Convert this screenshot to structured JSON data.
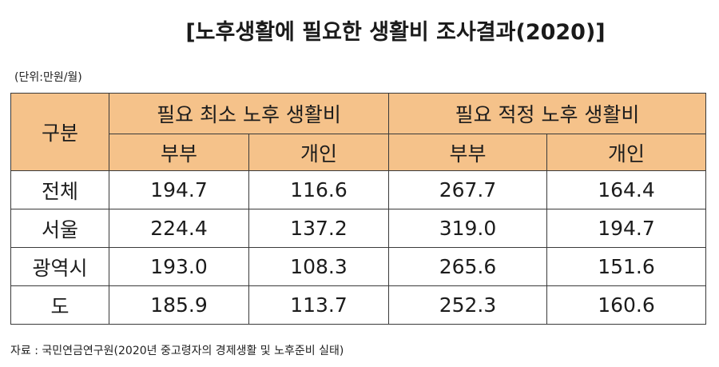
{
  "title": "[노후생활에 필요한 생활비 조사결과(2020)]",
  "unit": "(단위:만원/월)",
  "table": {
    "corner": "구분",
    "groups": [
      "필요 최소 노후 생활비",
      "필요 적정 노후 생활비"
    ],
    "subheaders": [
      "부부",
      "개인",
      "부부",
      "개인"
    ],
    "rows": [
      {
        "label": "전체",
        "values": [
          "194.7",
          "116.6",
          "267.7",
          "164.4"
        ]
      },
      {
        "label": "서울",
        "values": [
          "224.4",
          "137.2",
          "319.0",
          "194.7"
        ]
      },
      {
        "label": "광역시",
        "values": [
          "193.0",
          "108.3",
          "265.6",
          "151.6"
        ]
      },
      {
        "label": "도",
        "values": [
          "185.9",
          "113.7",
          "252.3",
          "160.6"
        ]
      }
    ]
  },
  "source": "자료 : 국민연금연구원(2020년 중고령자의 경제생활 및 노후준비 실태)",
  "colors": {
    "header_bg": "#f5c28a",
    "border": "#3a3a3a"
  }
}
